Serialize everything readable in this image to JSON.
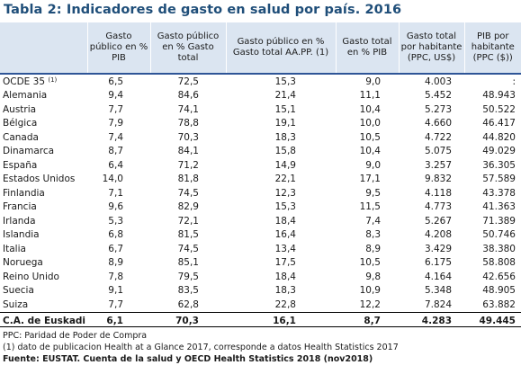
{
  "title": "Tabla 2: Indicadores de gasto en salud por país. 2016",
  "table": {
    "headers": [
      "",
      "Gasto público en % PIB",
      "Gasto público en % Gasto total",
      "Gasto público en % Gasto total AA.PP. (1)",
      "Gasto total en % PIB",
      "Gasto total por habitante (PPC, US$)",
      "PIB por habitante (PPC ($))"
    ],
    "oecd": {
      "label": "OCDE 35",
      "note_mark": "(1)",
      "values": [
        "6,5",
        "72,5",
        "15,3",
        "9,0",
        "4.003",
        ":"
      ]
    },
    "rows": [
      {
        "country": "Alemania",
        "values": [
          "9,4",
          "84,6",
          "21,4",
          "11,1",
          "5.452",
          "48.943"
        ]
      },
      {
        "country": "Austria",
        "values": [
          "7,7",
          "74,1",
          "15,1",
          "10,4",
          "5.273",
          "50.522"
        ]
      },
      {
        "country": "Bélgica",
        "values": [
          "7,9",
          "78,8",
          "19,1",
          "10,0",
          "4.660",
          "46.417"
        ]
      },
      {
        "country": "Canada",
        "values": [
          "7,4",
          "70,3",
          "18,3",
          "10,5",
          "4.722",
          "44.820"
        ]
      },
      {
        "country": "Dinamarca",
        "values": [
          "8,7",
          "84,1",
          "15,8",
          "10,4",
          "5.075",
          "49.029"
        ]
      },
      {
        "country": "España",
        "values": [
          "6,4",
          "71,2",
          "14,9",
          "9,0",
          "3.257",
          "36.305"
        ]
      },
      {
        "country": "Estados Unidos",
        "values": [
          "14,0",
          "81,8",
          "22,1",
          "17,1",
          "9.832",
          "57.589"
        ]
      },
      {
        "country": "Finlandia",
        "values": [
          "7,1",
          "74,5",
          "12,3",
          "9,5",
          "4.118",
          "43.378"
        ]
      },
      {
        "country": "Francia",
        "values": [
          "9,6",
          "82,9",
          "15,3",
          "11,5",
          "4.773",
          "41.363"
        ]
      },
      {
        "country": "Irlanda",
        "values": [
          "5,3",
          "72,1",
          "18,4",
          "7,4",
          "5.267",
          "71.389"
        ]
      },
      {
        "country": "Islandia",
        "values": [
          "6,8",
          "81,5",
          "16,4",
          "8,3",
          "4.208",
          "50.746"
        ]
      },
      {
        "country": "Italia",
        "values": [
          "6,7",
          "74,5",
          "13,4",
          "8,9",
          "3.429",
          "38.380"
        ]
      },
      {
        "country": "Noruega",
        "values": [
          "8,9",
          "85,1",
          "17,5",
          "10,5",
          "6.175",
          "58.808"
        ]
      },
      {
        "country": "Reino Unido",
        "values": [
          "7,8",
          "79,5",
          "18,4",
          "9,8",
          "4.164",
          "42.656"
        ]
      },
      {
        "country": "Suecia",
        "values": [
          "9,1",
          "83,5",
          "18,3",
          "10,9",
          "5.348",
          "48.905"
        ]
      },
      {
        "country": "Suiza",
        "values": [
          "7,7",
          "62,8",
          "22,8",
          "12,2",
          "7.824",
          "63.882"
        ]
      }
    ],
    "euskadi": {
      "label": "C.A. de Euskadi",
      "values": [
        "6,1",
        "70,3",
        "16,1",
        "8,7",
        "4.283",
        "49.445"
      ]
    }
  },
  "notes": {
    "ppc": "PPC: Paridad de Poder de Compra",
    "note1": "(1) dato de publicacion Health at a Glance 2017, corresponde a datos Health Statistics 2017",
    "source": "Fuente: EUSTAT. Cuenta de la salud y OECD Health Statistics 2018 (nov2018)"
  }
}
